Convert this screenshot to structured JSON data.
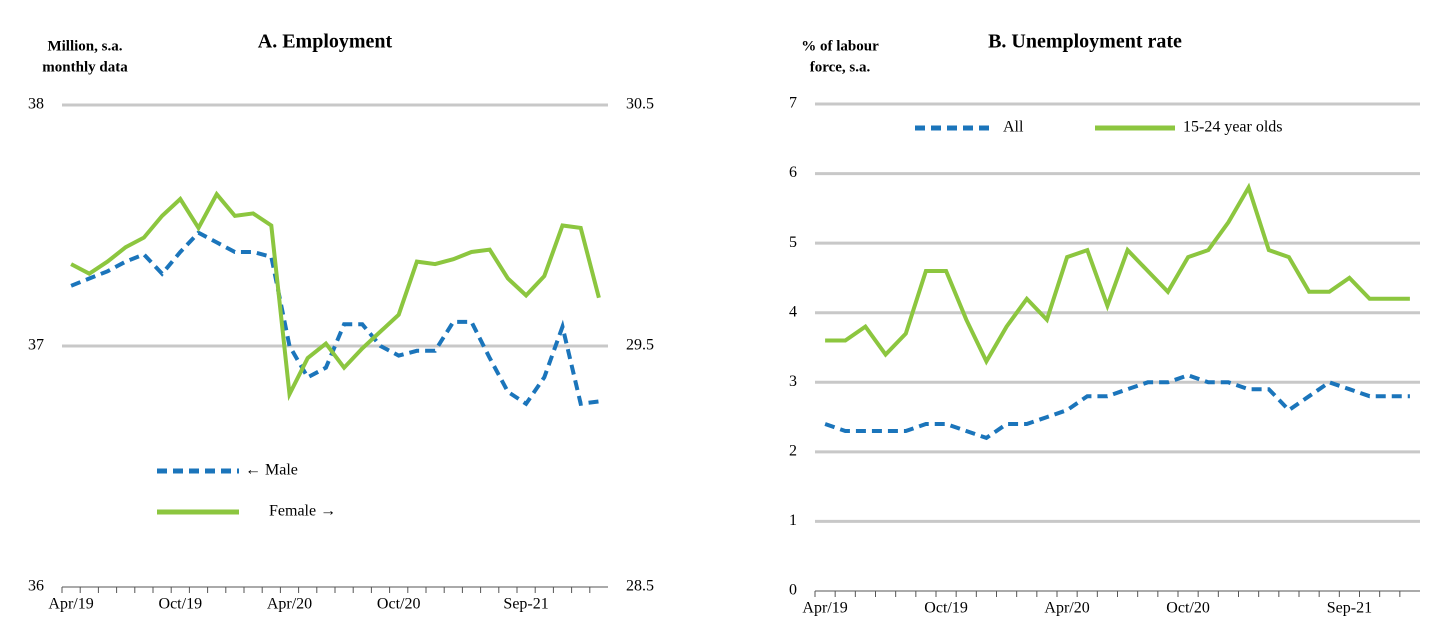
{
  "chart_data": [
    {
      "type": "line",
      "title": "A. Employment",
      "y_label": [
        "Million, s.a.",
        "monthly data"
      ],
      "categories": [
        "Apr/19",
        null,
        null,
        null,
        null,
        null,
        "Oct/19",
        null,
        null,
        null,
        null,
        null,
        "Apr/20",
        null,
        null,
        null,
        null,
        null,
        "Oct/20",
        null,
        null,
        null,
        null,
        null,
        null,
        "Sep-21",
        null,
        null,
        null,
        null
      ],
      "series": [
        {
          "name": "← Male",
          "color": "#1b75bb",
          "dash": true,
          "values": [
            37.25,
            37.28,
            37.31,
            37.35,
            37.38,
            37.3,
            37.39,
            37.47,
            37.43,
            37.39,
            37.39,
            37.37,
            37.0,
            36.87,
            36.91,
            37.09,
            37.09,
            37.0,
            36.96,
            36.98,
            36.98,
            37.1,
            37.1,
            36.95,
            36.81,
            36.76,
            36.87,
            37.08,
            36.76,
            36.77
          ]
        },
        {
          "name": "Female →",
          "color": "#8cc63f",
          "axis": "y2",
          "values": [
            29.84,
            29.8,
            29.85,
            29.91,
            29.95,
            30.04,
            30.11,
            29.99,
            30.13,
            30.04,
            30.05,
            30.0,
            29.3,
            29.45,
            29.51,
            29.41,
            29.49,
            29.56,
            29.63,
            29.85,
            29.84,
            29.86,
            29.89,
            29.9,
            29.78,
            29.71,
            29.79,
            30.0,
            29.99,
            29.7
          ]
        }
      ],
      "ylim": [
        36,
        38
      ],
      "yticks": [
        36,
        37,
        38
      ],
      "y2lim": [
        28.5,
        30.5
      ],
      "y2ticks": [
        28.5,
        29.5,
        30.5
      ],
      "grid": true,
      "legend": "lower left"
    },
    {
      "type": "line",
      "title": "B. Unemployment rate",
      "y_label": [
        "% of labour",
        "force, s.a."
      ],
      "categories": [
        "Apr/19",
        null,
        null,
        null,
        null,
        null,
        "Oct/19",
        null,
        null,
        null,
        null,
        null,
        "Apr/20",
        null,
        null,
        null,
        null,
        null,
        "Oct/20",
        null,
        null,
        null,
        null,
        null,
        null,
        null,
        "Sep-21",
        null,
        null,
        null
      ],
      "series": [
        {
          "name": "All",
          "color": "#1b75bb",
          "dash": true,
          "values": [
            2.4,
            2.3,
            2.3,
            2.3,
            2.3,
            2.4,
            2.4,
            2.3,
            2.2,
            2.4,
            2.4,
            2.5,
            2.6,
            2.8,
            2.8,
            2.9,
            3.0,
            3.0,
            3.1,
            3.0,
            3.0,
            2.9,
            2.9,
            2.6,
            2.8,
            3.0,
            2.9,
            2.8,
            2.8,
            2.8
          ]
        },
        {
          "name": "15-24 year olds",
          "color": "#8cc63f",
          "values": [
            3.6,
            3.6,
            3.8,
            3.4,
            3.7,
            4.6,
            4.6,
            3.9,
            3.3,
            3.8,
            4.2,
            3.9,
            4.8,
            4.9,
            4.1,
            4.9,
            4.6,
            4.3,
            4.8,
            4.9,
            5.3,
            5.8,
            4.9,
            4.8,
            4.3,
            4.3,
            4.5,
            4.2,
            4.2,
            4.2
          ]
        }
      ],
      "ylim": [
        0,
        7
      ],
      "yticks": [
        0,
        1,
        2,
        3,
        4,
        5,
        6,
        7
      ],
      "grid": true,
      "legend": "upper center"
    }
  ]
}
